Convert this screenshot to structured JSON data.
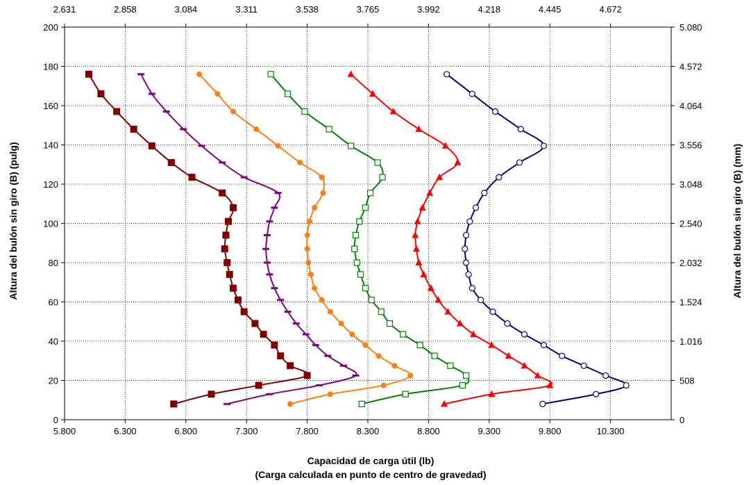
{
  "chart_data": {
    "type": "line",
    "xlabel_line1": "Capacidad de carga útil (lb)",
    "xlabel_line2": "(Carga calculada en punto de centro de gravedad)",
    "ylabel_left": "Altura del bulón sin giro (B) (pulg)",
    "ylabel_right": "Altura del bulón sin giro (B) (mm)",
    "xlim": [
      5800,
      10800
    ],
    "ylim": [
      0,
      200
    ],
    "x_ticks": [
      5800,
      6300,
      6800,
      7300,
      7800,
      8300,
      8800,
      9300,
      9800,
      10300
    ],
    "x_tick_labels": [
      "5.800",
      "6.300",
      "6.800",
      "7.300",
      "7.800",
      "8.300",
      "8.800",
      "9.300",
      "9.800",
      "10.300"
    ],
    "y_ticks": [
      0,
      20,
      40,
      60,
      80,
      100,
      120,
      140,
      160,
      180,
      200
    ],
    "y_tick_labels": [
      "0",
      "20",
      "40",
      "60",
      "80",
      "100",
      "120",
      "140",
      "160",
      "180",
      "200"
    ],
    "top_ticks": [
      2.631,
      2.858,
      3.084,
      3.311,
      3.538,
      3.765,
      3.992,
      4.218,
      4.445,
      4.672
    ],
    "top_tick_labels": [
      "2.631",
      "2.858",
      "3.084",
      "3.311",
      "3.538",
      "3.765",
      "3.992",
      "4.218",
      "4.445",
      "4.672"
    ],
    "right_ticks": [
      0,
      508,
      1016,
      1524,
      2032,
      2540,
      3048,
      3556,
      4064,
      4572,
      5080
    ],
    "right_tick_labels": [
      "0",
      "508",
      "1.016",
      "1.524",
      "2.032",
      "2.540",
      "3.048",
      "3.556",
      "4.064",
      "4.572",
      "5.080"
    ],
    "grid_horizontal": true,
    "grid_vertical": true,
    "grid_style": "dotted",
    "legend": "none",
    "series": [
      {
        "color": "#800000",
        "marker": "square-filled",
        "points": [
          [
            6700,
            8
          ],
          [
            7010,
            13
          ],
          [
            7400,
            17.5
          ],
          [
            7800,
            22.5
          ],
          [
            7660,
            27.5
          ],
          [
            7580,
            32.5
          ],
          [
            7530,
            38
          ],
          [
            7440,
            43.5
          ],
          [
            7370,
            49
          ],
          [
            7280,
            55
          ],
          [
            7230,
            61
          ],
          [
            7190,
            67
          ],
          [
            7160,
            74
          ],
          [
            7140,
            80
          ],
          [
            7120,
            87
          ],
          [
            7130,
            94
          ],
          [
            7150,
            101
          ],
          [
            7190,
            108
          ],
          [
            7100,
            115.5
          ],
          [
            6850,
            123.5
          ],
          [
            6680,
            131
          ],
          [
            6520,
            139.5
          ],
          [
            6370,
            148
          ],
          [
            6230,
            157
          ],
          [
            6100,
            166
          ],
          [
            6000,
            176
          ]
        ]
      },
      {
        "color": "#800080",
        "marker": "dash",
        "points": [
          [
            7140,
            8
          ],
          [
            7490,
            13
          ],
          [
            7900,
            17.5
          ],
          [
            8200,
            22.5
          ],
          [
            8100,
            27.5
          ],
          [
            7970,
            32.5
          ],
          [
            7870,
            38
          ],
          [
            7790,
            43.5
          ],
          [
            7710,
            49
          ],
          [
            7640,
            55
          ],
          [
            7580,
            61
          ],
          [
            7530,
            67
          ],
          [
            7490,
            74
          ],
          [
            7470,
            80
          ],
          [
            7460,
            87
          ],
          [
            7470,
            94
          ],
          [
            7490,
            101
          ],
          [
            7530,
            108
          ],
          [
            7560,
            115.5
          ],
          [
            7280,
            123.5
          ],
          [
            7100,
            131
          ],
          [
            6930,
            139.5
          ],
          [
            6780,
            148
          ],
          [
            6640,
            157
          ],
          [
            6520,
            166
          ],
          [
            6430,
            176
          ]
        ]
      },
      {
        "color": "#ff7f0e",
        "marker": "circle-filled",
        "points": [
          [
            7660,
            8
          ],
          [
            7990,
            13
          ],
          [
            8430,
            17.5
          ],
          [
            8650,
            22.5
          ],
          [
            8520,
            27.5
          ],
          [
            8390,
            32.5
          ],
          [
            8280,
            38
          ],
          [
            8170,
            43.5
          ],
          [
            8080,
            49
          ],
          [
            7990,
            55
          ],
          [
            7920,
            61
          ],
          [
            7860,
            67
          ],
          [
            7830,
            74
          ],
          [
            7810,
            80
          ],
          [
            7800,
            87
          ],
          [
            7800,
            94
          ],
          [
            7820,
            101
          ],
          [
            7860,
            108
          ],
          [
            7930,
            115.5
          ],
          [
            7920,
            123.5
          ],
          [
            7740,
            131
          ],
          [
            7560,
            139.5
          ],
          [
            7380,
            148
          ],
          [
            7190,
            157
          ],
          [
            7060,
            166
          ],
          [
            6910,
            176
          ]
        ]
      },
      {
        "color": "#008000",
        "marker": "square-open",
        "points": [
          [
            8250,
            8
          ],
          [
            8610,
            13
          ],
          [
            9080,
            17.5
          ],
          [
            9110,
            22.5
          ],
          [
            8980,
            27.5
          ],
          [
            8850,
            32.5
          ],
          [
            8730,
            38
          ],
          [
            8590,
            43.5
          ],
          [
            8480,
            49
          ],
          [
            8410,
            55
          ],
          [
            8330,
            61
          ],
          [
            8280,
            67
          ],
          [
            8240,
            74
          ],
          [
            8210,
            80
          ],
          [
            8190,
            87
          ],
          [
            8200,
            94
          ],
          [
            8230,
            101
          ],
          [
            8280,
            108
          ],
          [
            8320,
            115.5
          ],
          [
            8420,
            123.5
          ],
          [
            8380,
            131
          ],
          [
            8160,
            139.5
          ],
          [
            7980,
            148
          ],
          [
            7780,
            157
          ],
          [
            7640,
            166
          ],
          [
            7500,
            176
          ]
        ]
      },
      {
        "color": "#ff0000",
        "marker": "triangle-filled",
        "points": [
          [
            8930,
            8
          ],
          [
            9320,
            13
          ],
          [
            9800,
            17.5
          ],
          [
            9700,
            22.5
          ],
          [
            9590,
            27.5
          ],
          [
            9460,
            32.5
          ],
          [
            9320,
            38
          ],
          [
            9170,
            43.5
          ],
          [
            9060,
            49
          ],
          [
            8960,
            55
          ],
          [
            8880,
            61
          ],
          [
            8820,
            67
          ],
          [
            8760,
            74
          ],
          [
            8720,
            80
          ],
          [
            8700,
            87
          ],
          [
            8690,
            94
          ],
          [
            8710,
            101
          ],
          [
            8750,
            108
          ],
          [
            8810,
            115.5
          ],
          [
            8890,
            123.5
          ],
          [
            9040,
            131
          ],
          [
            8940,
            139.5
          ],
          [
            8720,
            148
          ],
          [
            8510,
            157
          ],
          [
            8340,
            166
          ],
          [
            8160,
            176
          ]
        ]
      },
      {
        "color": "#000080",
        "marker": "circle-open",
        "points": [
          [
            9740,
            8
          ],
          [
            10180,
            13
          ],
          [
            10430,
            17.5
          ],
          [
            10260,
            22.5
          ],
          [
            10080,
            27.5
          ],
          [
            9900,
            32.5
          ],
          [
            9750,
            38
          ],
          [
            9590,
            43.5
          ],
          [
            9450,
            49
          ],
          [
            9330,
            55
          ],
          [
            9230,
            61
          ],
          [
            9160,
            67
          ],
          [
            9130,
            74
          ],
          [
            9110,
            80
          ],
          [
            9100,
            87
          ],
          [
            9110,
            94
          ],
          [
            9140,
            101
          ],
          [
            9190,
            108
          ],
          [
            9260,
            115.5
          ],
          [
            9380,
            123.5
          ],
          [
            9550,
            131
          ],
          [
            9750,
            139.5
          ],
          [
            9560,
            148
          ],
          [
            9350,
            157
          ],
          [
            9160,
            166
          ],
          [
            8950,
            176
          ]
        ]
      }
    ]
  }
}
